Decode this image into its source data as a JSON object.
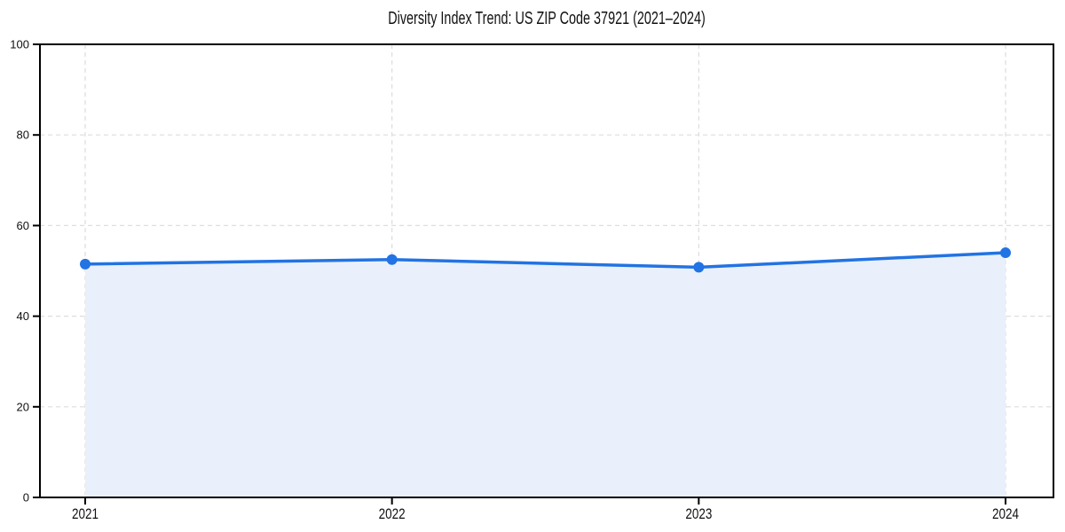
{
  "figure": {
    "background": "#ffffff"
  },
  "chart_data": {
    "type": "area",
    "title": "Diversity Index Trend: US ZIP Code 37921 (2021–2024)",
    "categories": [
      "2021",
      "2022",
      "2023",
      "2024"
    ],
    "values": [
      51.5,
      52.5,
      50.8,
      54.0
    ],
    "xlabel": "",
    "ylabel": "",
    "ylim": [
      0,
      100
    ],
    "yticks": [
      0,
      20,
      40,
      60,
      80,
      100
    ],
    "ytick_labels": [
      "0",
      "20",
      "40",
      "60",
      "80",
      "100"
    ],
    "grid": true,
    "grid_style": "dashed",
    "legend": false,
    "marker": "circle",
    "colors": {
      "line": "#2273e3",
      "marker": "#2273e3",
      "fill": "#e9f0fc",
      "grid": "#dddddd",
      "axis": "#000000",
      "tick_text": "#111111",
      "title_text": "#111111",
      "background": "#ffffff"
    }
  }
}
